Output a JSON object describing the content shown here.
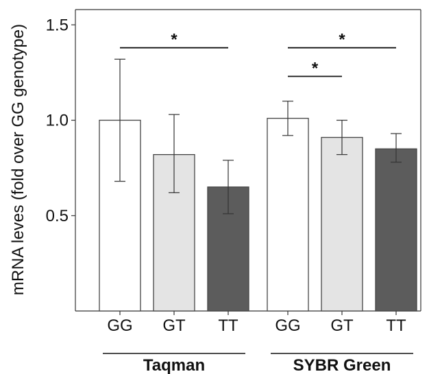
{
  "chart_data": {
    "type": "bar",
    "title": "",
    "xlabel": "",
    "ylabel": "mRNA leves (fold over GG genotype)",
    "ylim": [
      0,
      1.58
    ],
    "yticks": [
      0.5,
      1.0,
      1.5
    ],
    "ytick_labels": [
      "0.5",
      "1.0",
      "1.5"
    ],
    "grid": false,
    "colors": {
      "GG": "#ffffff",
      "GT": "#e4e4e4",
      "TT": "#5c5c5c",
      "axis": "#333333",
      "edge": "#444444"
    },
    "groups": [
      {
        "label": "Taqman",
        "bars": [
          {
            "category": "GG",
            "value": 1.0,
            "err_low": 0.68,
            "err_high": 1.32
          },
          {
            "category": "GT",
            "value": 0.82,
            "err_low": 0.62,
            "err_high": 1.03
          },
          {
            "category": "TT",
            "value": 0.65,
            "err_low": 0.51,
            "err_high": 0.79
          }
        ]
      },
      {
        "label": "SYBR Green",
        "bars": [
          {
            "category": "GG",
            "value": 1.01,
            "err_low": 0.92,
            "err_high": 1.1
          },
          {
            "category": "GT",
            "value": 0.91,
            "err_low": 0.82,
            "err_high": 1.0
          },
          {
            "category": "TT",
            "value": 0.85,
            "err_low": 0.78,
            "err_high": 0.93
          }
        ]
      }
    ],
    "significance": [
      {
        "group": 0,
        "from": 0,
        "to": 2,
        "y": 1.38,
        "label": "*"
      },
      {
        "group": 1,
        "from": 0,
        "to": 2,
        "y": 1.38,
        "label": "*"
      },
      {
        "group": 1,
        "from": 0,
        "to": 1,
        "y": 1.23,
        "label": "*"
      }
    ]
  }
}
